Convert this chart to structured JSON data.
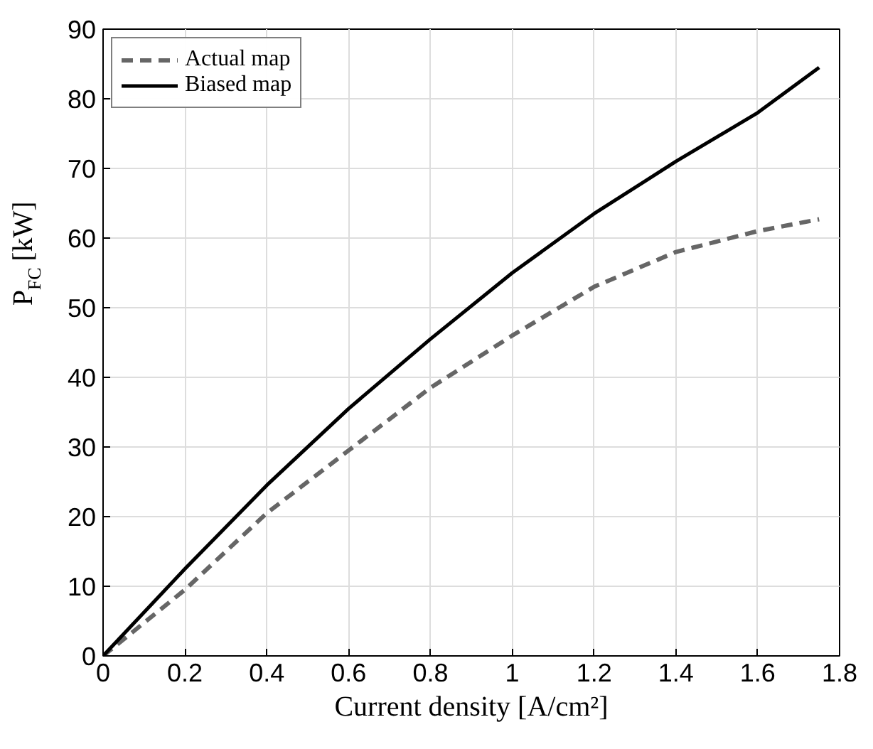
{
  "chart_data": {
    "type": "line",
    "xlabel": "Current density [A/cm²]",
    "ylabel": "P$_{FC}$ [kW]",
    "xlim": [
      0,
      1.8
    ],
    "ylim": [
      0,
      90
    ],
    "xticks": [
      0,
      0.2,
      0.4,
      0.6,
      0.8,
      1,
      1.2,
      1.4,
      1.6,
      1.8
    ],
    "yticks": [
      0,
      10,
      20,
      30,
      40,
      50,
      60,
      70,
      80,
      90
    ],
    "x": [
      0,
      0.2,
      0.4,
      0.6,
      0.8,
      1.0,
      1.2,
      1.4,
      1.6,
      1.75
    ],
    "series": [
      {
        "name": "Actual map",
        "color": "#666666",
        "line_style": "dashed",
        "values": [
          0,
          9.5,
          20.5,
          29.5,
          38.5,
          46,
          53,
          58,
          61,
          62.7
        ]
      },
      {
        "name": "Biased map",
        "color": "#000000",
        "line_style": "solid",
        "values": [
          0,
          12.5,
          24.5,
          35.5,
          45.5,
          55,
          63.5,
          71,
          78,
          84.5
        ]
      }
    ],
    "grid": true,
    "legend": "top left"
  }
}
